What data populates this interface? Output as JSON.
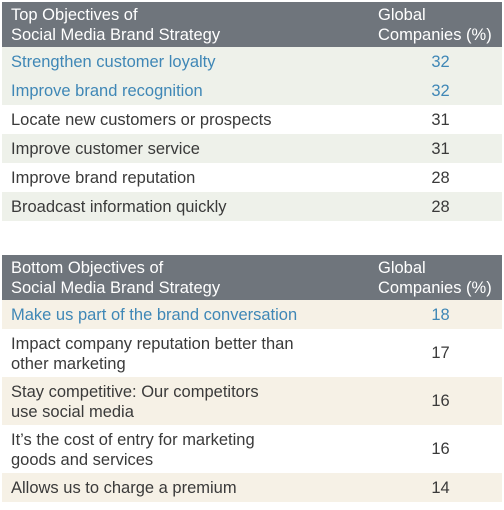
{
  "top_table": {
    "header": {
      "col1": "Top Objectives of\nSocial Media Brand Strategy",
      "col1_line1": "Top Objectives of",
      "col1_line2": "Social Media Brand Strategy",
      "col2_line1": "Global",
      "col2_line2": "Companies (%)"
    },
    "rows": [
      {
        "label": "Strengthen customer loyalty",
        "value": "32"
      },
      {
        "label": "Improve brand recognition",
        "value": "32"
      },
      {
        "label": "Locate new customers or prospects",
        "value": "31"
      },
      {
        "label": "Improve customer service",
        "value": "31"
      },
      {
        "label": "Improve brand reputation",
        "value": "28"
      },
      {
        "label": "Broadcast information quickly",
        "value": "28"
      }
    ]
  },
  "bottom_table": {
    "header": {
      "col1_line1": "Bottom Objectives of",
      "col1_line2": "Social Media Brand Strategy",
      "col2_line1": "Global",
      "col2_line2": "Companies (%)"
    },
    "rows": [
      {
        "label_line1": "Make us part of the brand conversation",
        "label_line2": "",
        "value": "18"
      },
      {
        "label_line1": "Impact company reputation better than",
        "label_line2": "other marketing",
        "value": "17"
      },
      {
        "label_line1": "Stay competitive: Our competitors",
        "label_line2": "use social media",
        "value": "16"
      },
      {
        "label_line1": "It’s the cost of entry for marketing",
        "label_line2": "goods and services",
        "value": "16"
      },
      {
        "label_line1": "Allows us to charge a premium",
        "label_line2": "",
        "value": "14"
      }
    ]
  },
  "colors": {
    "header_bg": "#6f757c",
    "accent_text": "#3f87b6",
    "body_text": "#3a3a3a",
    "top_row_bg": "#eef1ea",
    "bottom_row_bg": "#f6f1e6"
  }
}
